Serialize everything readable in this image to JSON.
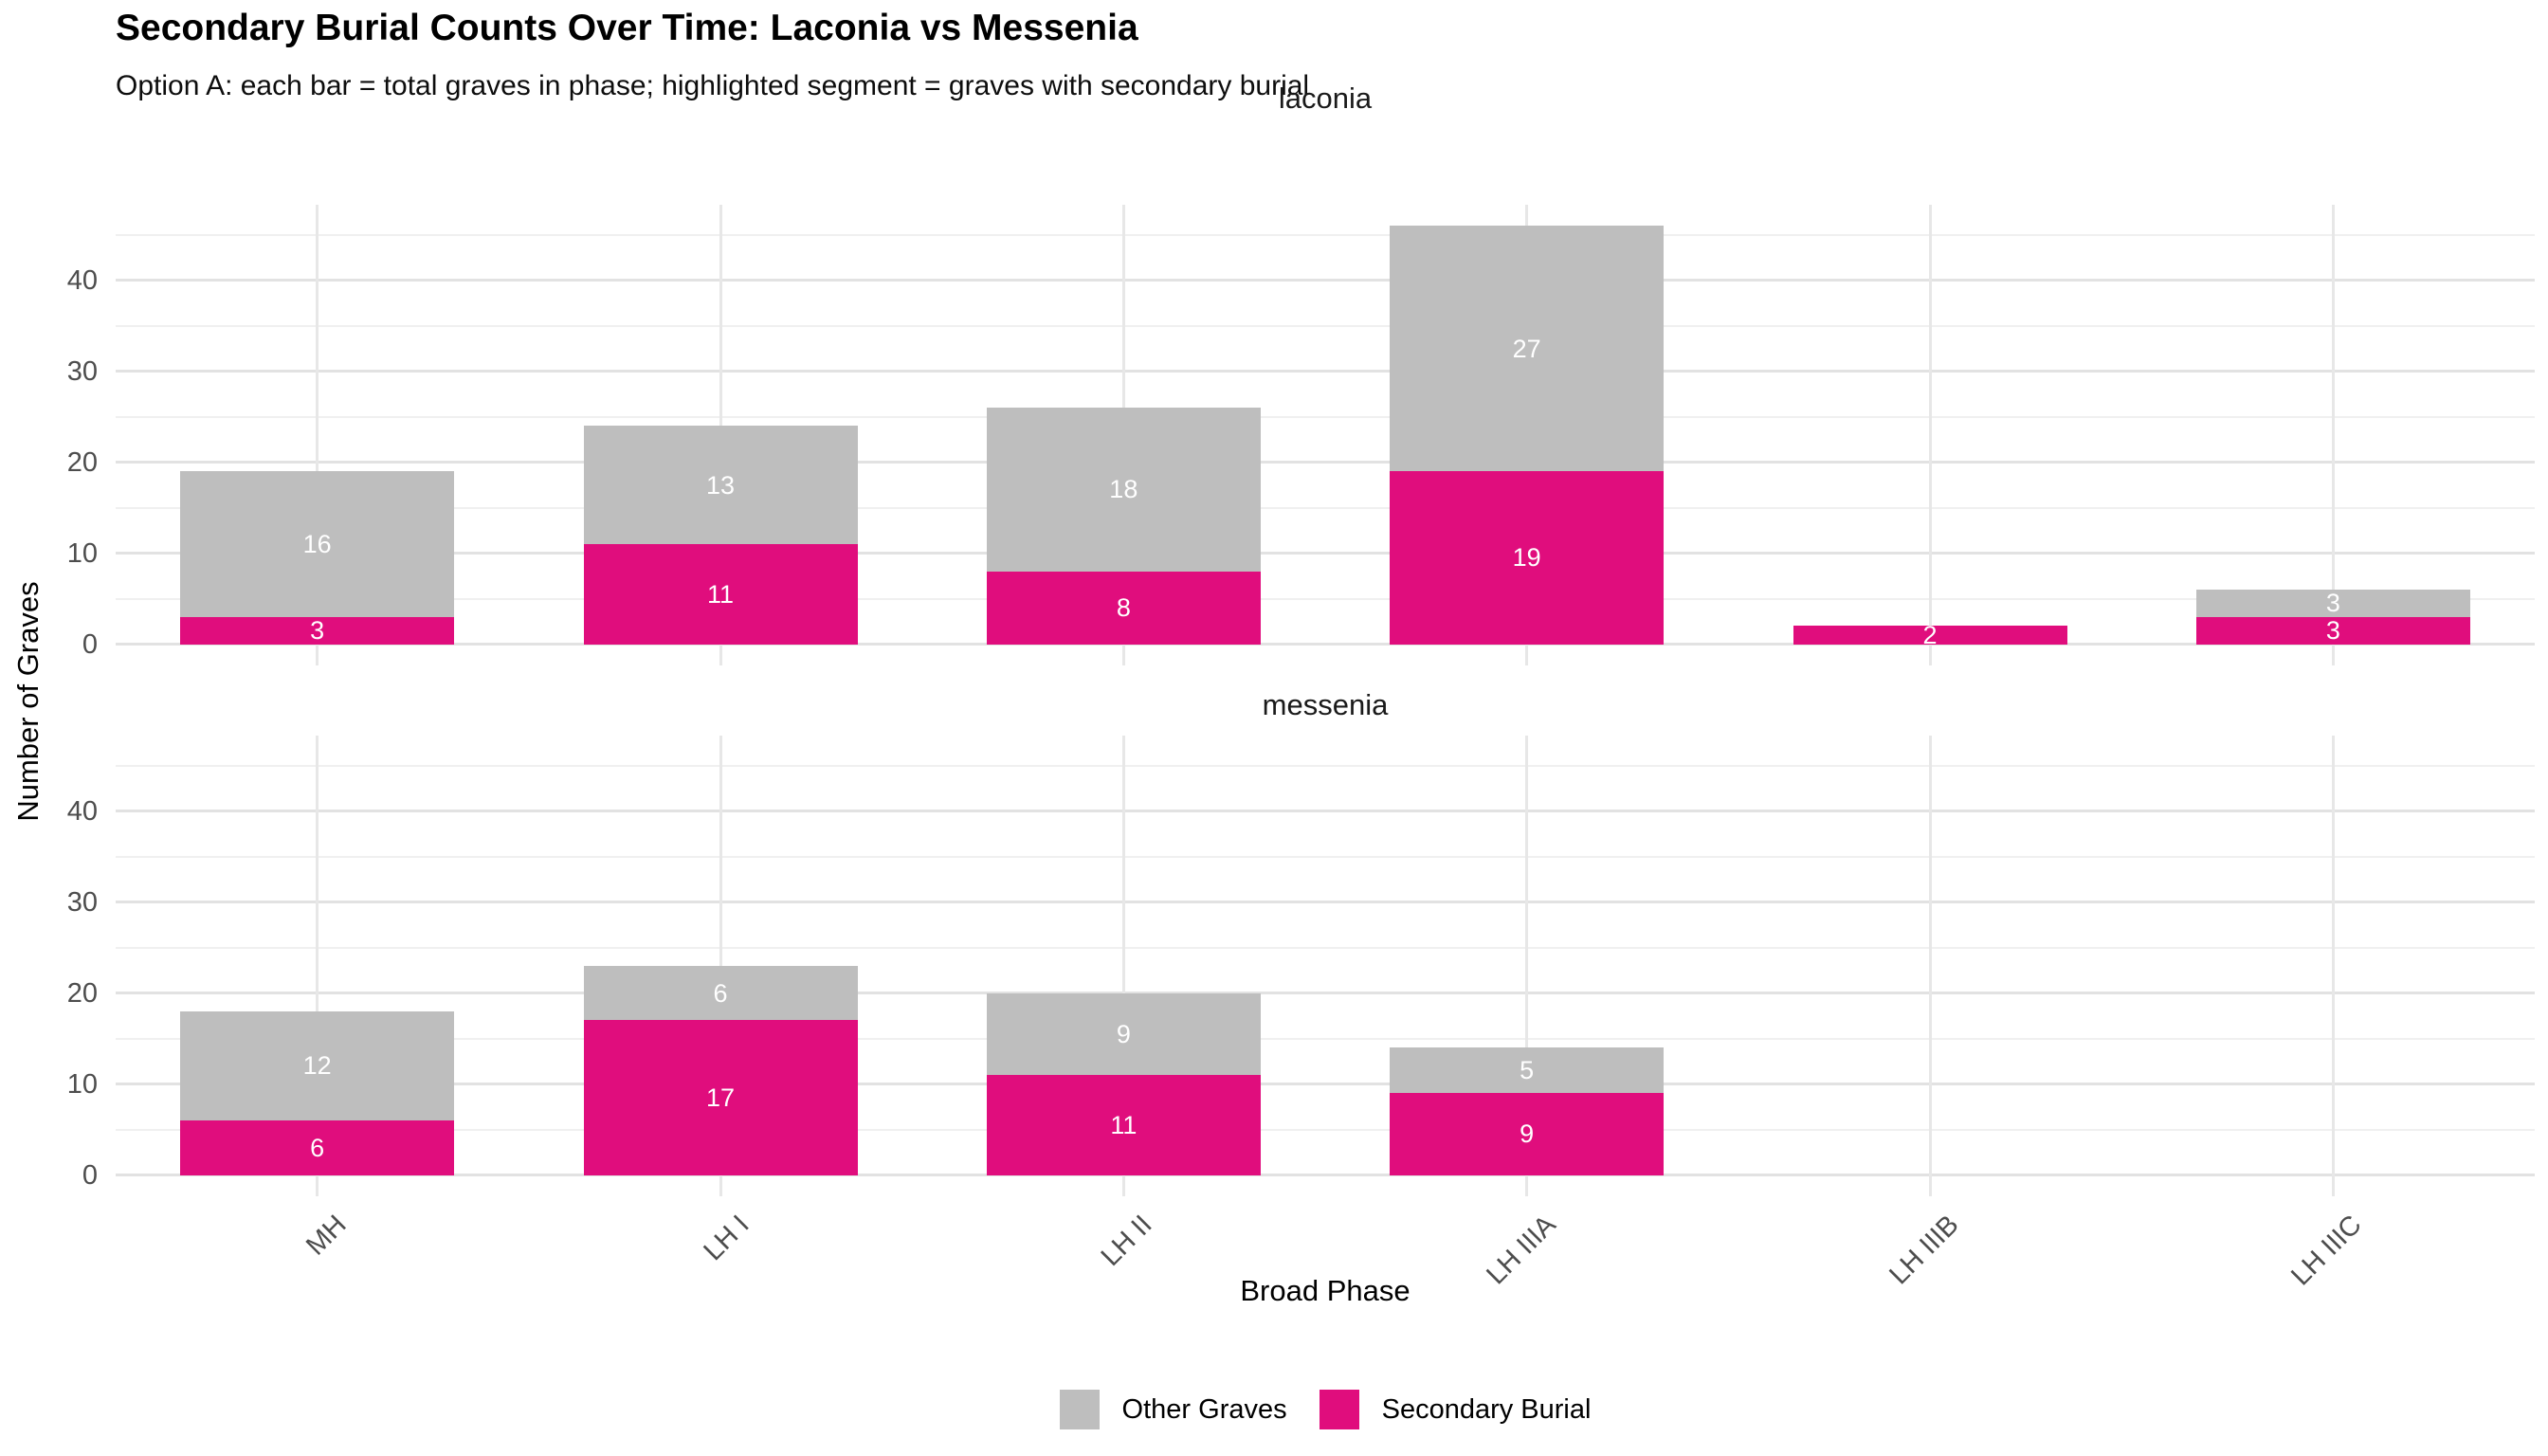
{
  "title": "Secondary Burial Counts Over Time: Laconia vs Messenia",
  "subtitle": "Option A: each bar = total graves in phase; highlighted segment = graves with secondary burial",
  "y_axis": {
    "title": "Number of Graves",
    "major_ticks": [
      0,
      10,
      20,
      30,
      40
    ],
    "minor_ticks": [
      5,
      15,
      25,
      35,
      45
    ]
  },
  "x_axis": {
    "title": "Broad Phase",
    "categories": [
      "MH",
      "LH I",
      "LH II",
      "LH IIIA",
      "LH IIIB",
      "LH IIIC"
    ]
  },
  "legend": {
    "items": [
      {
        "label": "Other Graves",
        "color": "#bebebe"
      },
      {
        "label": "Secondary Burial",
        "color": "#e00d7d"
      }
    ]
  },
  "colors": {
    "background": "#ffffff",
    "gridline_major": "#e2e2e2",
    "gridline_minor": "#f0f0f0",
    "tick_text": "#4d4d4d",
    "bar_label_text": "#ffffff"
  },
  "chart_data": {
    "type": "bar",
    "stacked": true,
    "grid": true,
    "legend_position": "bottom",
    "categories": [
      "MH",
      "LH I",
      "LH II",
      "LH IIIA",
      "LH IIIB",
      "LH IIIC"
    ],
    "ylim": [
      0,
      46
    ],
    "facets": [
      {
        "label": "laconia",
        "series": [
          {
            "name": "Secondary Burial",
            "values": [
              3,
              11,
              8,
              19,
              2,
              3
            ]
          },
          {
            "name": "Other Graves",
            "values": [
              16,
              13,
              18,
              27,
              0,
              3
            ]
          }
        ],
        "totals": [
          19,
          24,
          26,
          46,
          2,
          6
        ]
      },
      {
        "label": "messenia",
        "series": [
          {
            "name": "Secondary Burial",
            "values": [
              6,
              17,
              11,
              9,
              0,
              0
            ]
          },
          {
            "name": "Other Graves",
            "values": [
              12,
              6,
              9,
              5,
              0,
              0
            ]
          }
        ],
        "totals": [
          18,
          23,
          20,
          14,
          0,
          0
        ]
      }
    ]
  }
}
